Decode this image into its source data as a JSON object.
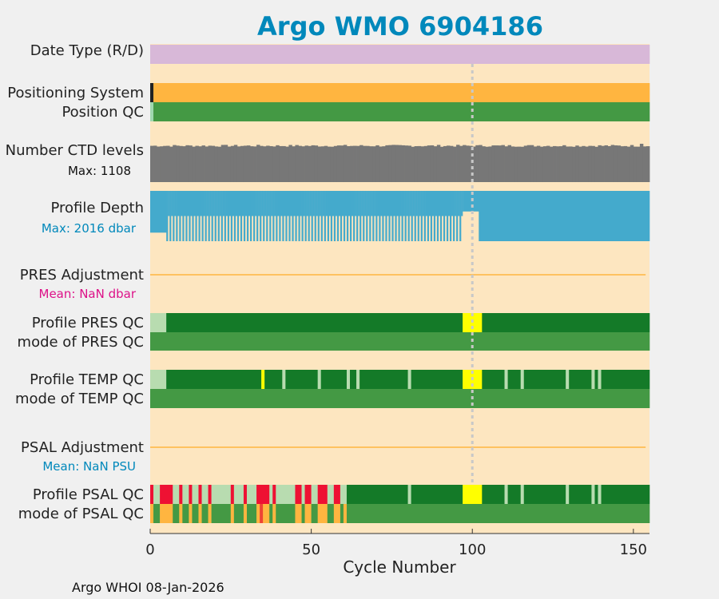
{
  "chart_data": {
    "type": "heatmap",
    "title": "Argo WMO 6904186",
    "xlabel": "Cycle Number",
    "xlim": [
      0,
      155
    ],
    "xticks": [
      0,
      50,
      100,
      150
    ],
    "marker_cycle": 100,
    "footer": "Argo WHOI 08-Jan-2026",
    "rows": {
      "date_type": {
        "label": "Date Type (R/D)",
        "segments": [
          {
            "from": 0,
            "to": 155,
            "code": "R"
          }
        ]
      },
      "positioning_system": {
        "label": "Positioning System",
        "segments": [
          {
            "from": 0,
            "to": 1,
            "code": "other"
          },
          {
            "from": 1,
            "to": 155,
            "code": "GPS"
          }
        ]
      },
      "position_qc": {
        "label": "Position QC",
        "segments": [
          {
            "from": 0,
            "to": 1,
            "code": "qc0"
          },
          {
            "from": 1,
            "to": 155,
            "code": "qc1"
          }
        ]
      },
      "ctd_levels": {
        "label": "Number CTD levels",
        "max_text": "Max: 1108",
        "max_value": 1108,
        "typical_range": [
          1020,
          1108
        ]
      },
      "profile_depth": {
        "label": "Profile Depth",
        "max_text": "Max: 2016 dbar",
        "max_value": 2016,
        "phases": [
          {
            "from": 0,
            "to": 5,
            "depth": 2016
          },
          {
            "from": 5,
            "to": 97,
            "depth_alternating": [
              2016,
              1000
            ]
          },
          {
            "from": 97,
            "to": 102,
            "depth": 1500
          },
          {
            "from": 102,
            "to": 155,
            "depth": 2016
          }
        ]
      },
      "pres_adjustment": {
        "label": "PRES Adjustment",
        "mean_text": "Mean:  NaN dbar"
      },
      "profile_pres_qc": {
        "label": "Profile PRES QC",
        "segments": [
          {
            "from": 0,
            "to": 5,
            "code": "F"
          },
          {
            "from": 5,
            "to": 97,
            "code": "A"
          },
          {
            "from": 97,
            "to": 103,
            "code": "D"
          },
          {
            "from": 103,
            "to": 155,
            "code": "A"
          }
        ]
      },
      "mode_pres_qc": {
        "label": "mode of PRES QC",
        "segments": [
          {
            "from": 0,
            "to": 155,
            "code": "1"
          }
        ]
      },
      "profile_temp_qc": {
        "label": "Profile TEMP QC",
        "segments": [
          {
            "from": 0,
            "to": 5,
            "code": "F"
          },
          {
            "from": 5,
            "to": 34.5,
            "code": "A"
          },
          {
            "from": 34.5,
            "to": 35.5,
            "code": "D"
          },
          {
            "from": 35.5,
            "to": 41,
            "code": "A"
          },
          {
            "from": 41,
            "to": 42,
            "code": "F"
          },
          {
            "from": 42,
            "to": 52,
            "code": "A"
          },
          {
            "from": 52,
            "to": 53,
            "code": "F"
          },
          {
            "from": 53,
            "to": 61,
            "code": "A"
          },
          {
            "from": 61,
            "to": 62,
            "code": "F"
          },
          {
            "from": 62,
            "to": 64,
            "code": "A"
          },
          {
            "from": 64,
            "to": 65,
            "code": "F"
          },
          {
            "from": 65,
            "to": 80,
            "code": "A"
          },
          {
            "from": 80,
            "to": 81,
            "code": "F"
          },
          {
            "from": 81,
            "to": 97,
            "code": "A"
          },
          {
            "from": 97,
            "to": 103,
            "code": "D"
          },
          {
            "from": 103,
            "to": 110,
            "code": "A"
          },
          {
            "from": 110,
            "to": 111,
            "code": "F"
          },
          {
            "from": 111,
            "to": 115,
            "code": "A"
          },
          {
            "from": 115,
            "to": 116,
            "code": "F"
          },
          {
            "from": 116,
            "to": 129,
            "code": "A"
          },
          {
            "from": 129,
            "to": 130,
            "code": "F"
          },
          {
            "from": 130,
            "to": 137,
            "code": "A"
          },
          {
            "from": 137,
            "to": 138,
            "code": "F"
          },
          {
            "from": 138,
            "to": 139,
            "code": "A"
          },
          {
            "from": 139,
            "to": 140,
            "code": "F"
          },
          {
            "from": 140,
            "to": 155,
            "code": "A"
          }
        ]
      },
      "mode_temp_qc": {
        "label": "mode of TEMP QC",
        "segments": [
          {
            "from": 0,
            "to": 155,
            "code": "1"
          }
        ]
      },
      "psal_adjustment": {
        "label": "PSAL Adjustment",
        "mean_text": "Mean:  NaN PSU"
      },
      "profile_psal_qc": {
        "label": "Profile PSAL QC",
        "segments": [
          {
            "from": 0,
            "to": 1,
            "code": "E"
          },
          {
            "from": 1,
            "to": 3,
            "code": "F"
          },
          {
            "from": 3,
            "to": 7,
            "code": "E"
          },
          {
            "from": 7,
            "to": 9,
            "code": "F"
          },
          {
            "from": 9,
            "to": 10,
            "code": "E"
          },
          {
            "from": 10,
            "to": 12,
            "code": "F"
          },
          {
            "from": 12,
            "to": 13,
            "code": "E"
          },
          {
            "from": 13,
            "to": 15,
            "code": "F"
          },
          {
            "from": 15,
            "to": 16,
            "code": "E"
          },
          {
            "from": 16,
            "to": 18,
            "code": "F"
          },
          {
            "from": 18,
            "to": 19,
            "code": "E"
          },
          {
            "from": 19,
            "to": 25,
            "code": "F"
          },
          {
            "from": 25,
            "to": 26,
            "code": "E"
          },
          {
            "from": 26,
            "to": 29,
            "code": "F"
          },
          {
            "from": 29,
            "to": 30,
            "code": "E"
          },
          {
            "from": 30,
            "to": 33,
            "code": "F"
          },
          {
            "from": 33,
            "to": 37,
            "code": "E"
          },
          {
            "from": 37,
            "to": 38,
            "code": "F"
          },
          {
            "from": 38,
            "to": 39,
            "code": "E"
          },
          {
            "from": 39,
            "to": 45,
            "code": "F"
          },
          {
            "from": 45,
            "to": 47,
            "code": "E"
          },
          {
            "from": 47,
            "to": 48,
            "code": "F"
          },
          {
            "from": 48,
            "to": 50,
            "code": "E"
          },
          {
            "from": 50,
            "to": 52,
            "code": "F"
          },
          {
            "from": 52,
            "to": 55,
            "code": "E"
          },
          {
            "from": 55,
            "to": 57,
            "code": "F"
          },
          {
            "from": 57,
            "to": 59,
            "code": "E"
          },
          {
            "from": 59,
            "to": 61,
            "code": "F"
          },
          {
            "from": 61,
            "to": 80,
            "code": "A"
          },
          {
            "from": 80,
            "to": 81,
            "code": "F"
          },
          {
            "from": 81,
            "to": 97,
            "code": "A"
          },
          {
            "from": 97,
            "to": 103,
            "code": "D"
          },
          {
            "from": 103,
            "to": 110,
            "code": "A"
          },
          {
            "from": 110,
            "to": 111,
            "code": "F"
          },
          {
            "from": 111,
            "to": 115,
            "code": "A"
          },
          {
            "from": 115,
            "to": 116,
            "code": "F"
          },
          {
            "from": 116,
            "to": 129,
            "code": "A"
          },
          {
            "from": 129,
            "to": 130,
            "code": "F"
          },
          {
            "from": 130,
            "to": 137,
            "code": "A"
          },
          {
            "from": 137,
            "to": 138,
            "code": "F"
          },
          {
            "from": 138,
            "to": 139,
            "code": "A"
          },
          {
            "from": 139,
            "to": 140,
            "code": "F"
          },
          {
            "from": 140,
            "to": 155,
            "code": "A"
          }
        ]
      },
      "mode_psal_qc": {
        "label": "mode of PSAL QC",
        "segments": [
          {
            "from": 0,
            "to": 1,
            "code": "3"
          },
          {
            "from": 1,
            "to": 3,
            "code": "1"
          },
          {
            "from": 3,
            "to": 7,
            "code": "3"
          },
          {
            "from": 7,
            "to": 9,
            "code": "1"
          },
          {
            "from": 9,
            "to": 10,
            "code": "3"
          },
          {
            "from": 10,
            "to": 12,
            "code": "1"
          },
          {
            "from": 12,
            "to": 13,
            "code": "3"
          },
          {
            "from": 13,
            "to": 15,
            "code": "1"
          },
          {
            "from": 15,
            "to": 16,
            "code": "3"
          },
          {
            "from": 16,
            "to": 18,
            "code": "1"
          },
          {
            "from": 18,
            "to": 19,
            "code": "3"
          },
          {
            "from": 19,
            "to": 25,
            "code": "1"
          },
          {
            "from": 25,
            "to": 26,
            "code": "3"
          },
          {
            "from": 26,
            "to": 29,
            "code": "1"
          },
          {
            "from": 29,
            "to": 30,
            "code": "3"
          },
          {
            "from": 30,
            "to": 33,
            "code": "1"
          },
          {
            "from": 33,
            "to": 34,
            "code": "3"
          },
          {
            "from": 34,
            "to": 35,
            "code": "4"
          },
          {
            "from": 35,
            "to": 37,
            "code": "3"
          },
          {
            "from": 37,
            "to": 38,
            "code": "1"
          },
          {
            "from": 38,
            "to": 39,
            "code": "3"
          },
          {
            "from": 39,
            "to": 45,
            "code": "1"
          },
          {
            "from": 45,
            "to": 47,
            "code": "3"
          },
          {
            "from": 47,
            "to": 48,
            "code": "1"
          },
          {
            "from": 48,
            "to": 50,
            "code": "3"
          },
          {
            "from": 50,
            "to": 52,
            "code": "1"
          },
          {
            "from": 52,
            "to": 55,
            "code": "3"
          },
          {
            "from": 55,
            "to": 57,
            "code": "1"
          },
          {
            "from": 57,
            "to": 59,
            "code": "3"
          },
          {
            "from": 59,
            "to": 60,
            "code": "1"
          },
          {
            "from": 60,
            "to": 61,
            "code": "3"
          },
          {
            "from": 61,
            "to": 155,
            "code": "1"
          }
        ]
      }
    },
    "colors": {
      "background": "#fde6c0",
      "date_R": "#d8b8d8",
      "pos_GPS": "#ffb540",
      "pos_other": "#222222",
      "qc0": "#a0d8b0",
      "qc1": "#449944",
      "qc3": "#ffb540",
      "qc4": "#ee4433",
      "qcA": "#147a28",
      "qcD": "#ffff00",
      "qcE": "#ee1133",
      "qcF": "#b8dcb0",
      "ctd": "#777777",
      "depth": "#44aacc",
      "adjustment_line": "#ffb540",
      "marker": "#c8c8c8",
      "title": "#0088bb",
      "depth_text": "#0088bb",
      "mean_pres_text": "#dd1188",
      "mean_psal_text": "#0088bb"
    }
  }
}
